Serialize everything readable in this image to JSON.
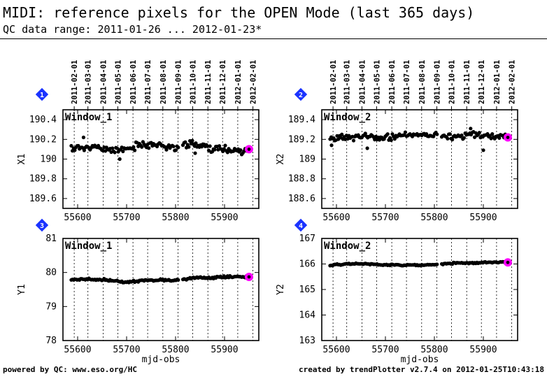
{
  "header": {
    "title": "MIDI: reference pixels for the OPEN Mode (last 365 days)",
    "subtitle": "QC data range: 2011-01-26 ... 2012-01-23*"
  },
  "footer": {
    "left": "powered by QC: www.eso.org/HC",
    "right": "created by trendPlotter v2.7.4 on 2012-01-25T10:43:18"
  },
  "colors": {
    "points": "#000000",
    "highlight": "#ff00ff",
    "badge": "#1a33ff",
    "grid": "#000000"
  },
  "chart_data": [
    {
      "type": "scatter",
      "panel": "1",
      "window_label": "Window_1",
      "xlabel": "",
      "ylabel": "X1",
      "xlim": [
        55570,
        55970
      ],
      "ylim": [
        189.5,
        190.5
      ],
      "x_ticks": [
        55600,
        55700,
        55800,
        55900
      ],
      "x_tick_labels": [
        "55600",
        "55700",
        "55800",
        "55900"
      ],
      "y_ticks": [
        189.6,
        189.8,
        190,
        190.2,
        190.4
      ],
      "y_tick_labels": [
        "189.6",
        "189.8",
        "190",
        "190.2",
        "190.4"
      ],
      "date_ticks": [
        55593,
        55621,
        55652,
        55682,
        55713,
        55743,
        55774,
        55805,
        55835,
        55866,
        55896,
        55927,
        55958
      ],
      "date_labels": [
        "2011-02-01",
        "2011-03-01",
        "2011-04-01",
        "2011-05-01",
        "2011-06-01",
        "2011-07-01",
        "2011-08-01",
        "2011-09-01",
        "2011-10-01",
        "2011-11-01",
        "2011-12-01",
        "2012-01-01",
        "2012-02-01"
      ],
      "series_gen": {
        "x_start": 55587,
        "x_end": 55945,
        "step": 2.4,
        "base": [
          190.11,
          190.12,
          190.1,
          190.09,
          190.15,
          190.14,
          190.12,
          190.16,
          190.11,
          190.09
        ],
        "noise": 0.045,
        "seed": 11,
        "outliers": [
          [
            55686,
            190.0
          ],
          [
            55612,
            190.22
          ],
          [
            55840,
            190.06
          ]
        ]
      },
      "highlight": {
        "x": 55950,
        "y": 190.1
      }
    },
    {
      "type": "scatter",
      "panel": "2",
      "window_label": "Window_2",
      "xlabel": "",
      "ylabel": "X2",
      "xlim": [
        55570,
        55970
      ],
      "ylim": [
        188.5,
        189.5
      ],
      "x_ticks": [
        55600,
        55700,
        55800,
        55900
      ],
      "x_tick_labels": [
        "55600",
        "55700",
        "55800",
        "55900"
      ],
      "y_ticks": [
        188.6,
        188.8,
        189,
        189.2,
        189.4
      ],
      "y_tick_labels": [
        "188.6",
        "188.8",
        "189",
        "189.2",
        "189.4"
      ],
      "date_ticks": [
        55593,
        55621,
        55652,
        55682,
        55713,
        55743,
        55774,
        55805,
        55835,
        55866,
        55896,
        55927,
        55958
      ],
      "date_labels": [
        "2011-02-01",
        "2011-03-01",
        "2011-04-01",
        "2011-05-01",
        "2011-06-01",
        "2011-07-01",
        "2011-08-01",
        "2011-09-01",
        "2011-10-01",
        "2011-11-01",
        "2011-12-01",
        "2012-01-01",
        "2012-02-01"
      ],
      "series_gen": {
        "x_start": 55587,
        "x_end": 55945,
        "step": 2.4,
        "base": [
          189.2,
          189.22,
          189.23,
          189.21,
          189.24,
          189.25,
          189.26,
          189.22,
          189.25,
          189.23
        ],
        "noise": 0.04,
        "seed": 23,
        "outliers": [
          [
            55590,
            189.14
          ],
          [
            55663,
            189.11
          ],
          [
            55900,
            189.09
          ],
          [
            55874,
            189.31
          ]
        ]
      },
      "highlight": {
        "x": 55950,
        "y": 189.22
      }
    },
    {
      "type": "scatter",
      "panel": "3",
      "window_label": "Window_1",
      "xlabel": "mjd-obs",
      "ylabel": "Y1",
      "xlim": [
        55570,
        55970
      ],
      "ylim": [
        78,
        81
      ],
      "x_ticks": [
        55600,
        55700,
        55800,
        55900
      ],
      "x_tick_labels": [
        "55600",
        "55700",
        "55800",
        "55900"
      ],
      "y_ticks": [
        78,
        79,
        80,
        81
      ],
      "y_tick_labels": [
        "78",
        "79",
        "80",
        "81"
      ],
      "date_ticks": [
        55593,
        55621,
        55652,
        55682,
        55713,
        55743,
        55774,
        55805,
        55835,
        55866,
        55896,
        55927,
        55958
      ],
      "series_gen": {
        "x_start": 55587,
        "x_end": 55945,
        "step": 2.4,
        "base": [
          79.77,
          79.8,
          79.78,
          79.72,
          79.76,
          79.78,
          79.77,
          79.85,
          79.84,
          79.88
        ],
        "noise": 0.035,
        "seed": 37,
        "outliers": []
      },
      "highlight": {
        "x": 55950,
        "y": 79.87
      }
    },
    {
      "type": "scatter",
      "panel": "4",
      "window_label": "Window_2",
      "xlabel": "mjd-obs",
      "ylabel": "Y2",
      "xlim": [
        55570,
        55970
      ],
      "ylim": [
        163,
        167
      ],
      "x_ticks": [
        55600,
        55700,
        55800,
        55900
      ],
      "x_tick_labels": [
        "55600",
        "55700",
        "55800",
        "55900"
      ],
      "y_ticks": [
        163,
        164,
        165,
        166,
        167
      ],
      "y_tick_labels": [
        "163",
        "164",
        "165",
        "166",
        "167"
      ],
      "date_ticks": [
        55593,
        55621,
        55652,
        55682,
        55713,
        55743,
        55774,
        55805,
        55835,
        55866,
        55896,
        55927,
        55958
      ],
      "series_gen": {
        "x_start": 55587,
        "x_end": 55945,
        "step": 2.4,
        "base": [
          165.95,
          166.0,
          166.0,
          165.97,
          165.95,
          165.96,
          165.97,
          166.03,
          166.05,
          166.06
        ],
        "noise": 0.035,
        "seed": 51,
        "outliers": []
      },
      "highlight": {
        "x": 55950,
        "y": 166.06
      }
    }
  ]
}
